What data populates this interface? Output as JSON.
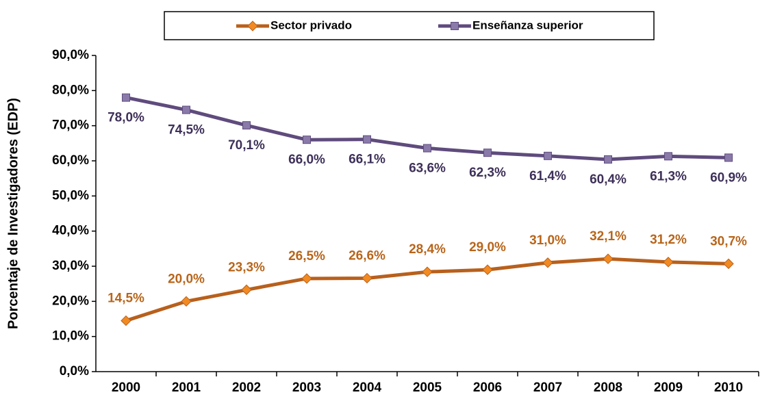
{
  "chart_data": {
    "type": "line",
    "y_label": "Porcentaje de Investigadores (EDP)",
    "categories": [
      "2000",
      "2001",
      "2002",
      "2003",
      "2004",
      "2005",
      "2006",
      "2007",
      "2008",
      "2009",
      "2010"
    ],
    "series": [
      {
        "name": "Sector privado",
        "color": "#b8601c",
        "marker_color": "#f28a22",
        "marker": "diamond",
        "label_color": "#b8651a",
        "values": [
          14.5,
          20.0,
          23.3,
          26.5,
          26.6,
          28.4,
          29.0,
          31.0,
          32.1,
          31.2,
          30.7
        ],
        "value_labels": [
          "14,5%",
          "20,0%",
          "23,3%",
          "26,5%",
          "26,6%",
          "28,4%",
          "29,0%",
          "31,0%",
          "32,1%",
          "31,2%",
          "30,7%"
        ]
      },
      {
        "name": "Enseñanza superior",
        "color": "#5f4b7d",
        "marker_color": "#8a7aaa",
        "marker": "square",
        "label_color": "#3e3059",
        "values": [
          78.0,
          74.5,
          70.1,
          66.0,
          66.1,
          63.6,
          62.3,
          61.4,
          60.4,
          61.3,
          60.9
        ],
        "value_labels": [
          "78,0%",
          "74,5%",
          "70,1%",
          "66,0%",
          "66,1%",
          "63,6%",
          "62,3%",
          "61,4%",
          "60,4%",
          "61,3%",
          "60,9%"
        ]
      }
    ],
    "ylim": [
      0,
      90
    ],
    "yticks": [
      {
        "value": 0,
        "label": "0,0%"
      },
      {
        "value": 10,
        "label": "10,0%"
      },
      {
        "value": 20,
        "label": "20,0%"
      },
      {
        "value": 30,
        "label": "30,0%"
      },
      {
        "value": 40,
        "label": "40,0%"
      },
      {
        "value": 50,
        "label": "50,0%"
      },
      {
        "value": 60,
        "label": "60,0%"
      },
      {
        "value": 70,
        "label": "70,0%"
      },
      {
        "value": 80,
        "label": "80,0%"
      },
      {
        "value": 90,
        "label": "90,0%"
      }
    ],
    "legend": "top",
    "grid": false
  }
}
